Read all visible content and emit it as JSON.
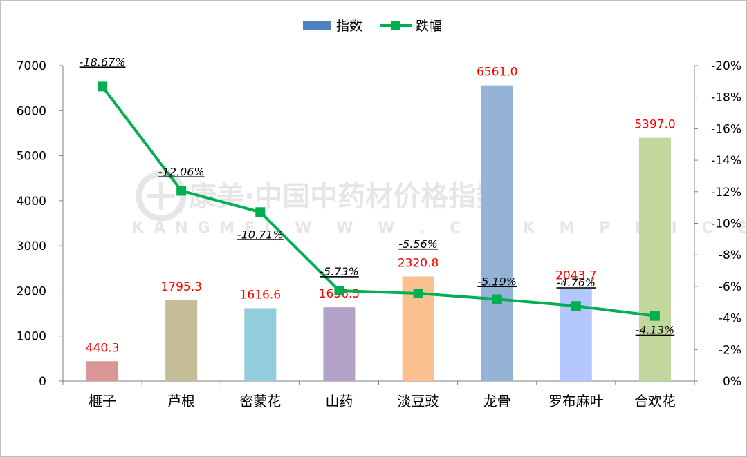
{
  "chart_data": {
    "type": "bar+line",
    "categories": [
      "榧子",
      "芦根",
      "密蒙花",
      "山药",
      "淡豆豉",
      "龙骨",
      "罗布麻叶",
      "合欢花"
    ],
    "series": [
      {
        "name": "指数",
        "type": "bar",
        "axis": "left",
        "values": [
          440.3,
          1795.3,
          1616.6,
          1636.5,
          2320.8,
          6561.0,
          2043.7,
          5397.0
        ],
        "labels": [
          "440.3",
          "1795.3",
          "1616.6",
          "1636.5",
          "2320.8",
          "6561.0",
          "2043.7",
          "5397.0"
        ],
        "colors": [
          "#d99694",
          "#c4bd97",
          "#92cddc",
          "#b3a2c7",
          "#fac090",
          "#95b3d7",
          "#b4c7ff",
          "#c3d69b"
        ],
        "legend_color": "#4f81bd"
      },
      {
        "name": "跌幅",
        "type": "line",
        "axis": "right",
        "values": [
          -18.67,
          -12.06,
          -10.71,
          -5.73,
          -5.56,
          -5.19,
          -4.76,
          -4.13
        ],
        "labels": [
          "-18.67%",
          "-12.06%",
          "-10.71%",
          "-5.73%",
          "-5.56%",
          "-5.19%",
          "-4.76%",
          "-4.13%"
        ],
        "color": "#00b050"
      }
    ],
    "left_axis": {
      "ylim": [
        0,
        7000
      ],
      "ticks": [
        "0",
        "1000",
        "2000",
        "3000",
        "4000",
        "5000",
        "6000",
        "7000"
      ]
    },
    "right_axis": {
      "ylim": [
        0,
        -20
      ],
      "ticks": [
        "0%",
        "-2%",
        "-4%",
        "-6%",
        "-8%",
        "-10%",
        "-12%",
        "-14%",
        "-16%",
        "-18%",
        "-20%"
      ]
    },
    "legend": {
      "position": "top-center",
      "entries": [
        "指数",
        "跌幅"
      ]
    },
    "grid": false
  },
  "watermark": {
    "main": "康美·中国中药材价格指数",
    "sub": "KANGMEI W W W . C N K M P R I C E . C O M"
  }
}
